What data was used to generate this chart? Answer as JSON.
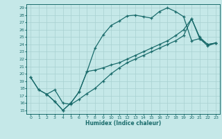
{
  "xlabel": "Humidex (Indice chaleur)",
  "bg_color": "#c5e8e8",
  "line_color": "#1a6b6b",
  "grid_color": "#a8d0d0",
  "xlim": [
    -0.5,
    23.5
  ],
  "ylim": [
    14.5,
    29.5
  ],
  "xticks": [
    0,
    1,
    2,
    3,
    4,
    5,
    6,
    7,
    8,
    9,
    10,
    11,
    12,
    13,
    14,
    15,
    16,
    17,
    18,
    19,
    20,
    21,
    22,
    23
  ],
  "yticks": [
    15,
    16,
    17,
    18,
    19,
    20,
    21,
    22,
    23,
    24,
    25,
    26,
    27,
    28,
    29
  ],
  "curve1_x": [
    0,
    1,
    2,
    3,
    4,
    5,
    6,
    7,
    8,
    9,
    10,
    11,
    12,
    13,
    14,
    15,
    16,
    17,
    18,
    19,
    20,
    21,
    22,
    23
  ],
  "curve1_y": [
    19.5,
    17.8,
    17.2,
    16.2,
    15.0,
    16.0,
    17.5,
    20.3,
    23.5,
    25.3,
    26.6,
    27.2,
    27.9,
    28.0,
    27.8,
    27.6,
    28.5,
    29.0,
    28.5,
    27.8,
    24.5,
    24.8,
    23.8,
    24.2
  ],
  "curve2_x": [
    0,
    1,
    2,
    3,
    4,
    5,
    6,
    7,
    8,
    9,
    10,
    11,
    12,
    13,
    14,
    15,
    16,
    17,
    18,
    19,
    20,
    21,
    22,
    23
  ],
  "curve2_y": [
    19.5,
    17.8,
    17.2,
    16.2,
    15.0,
    16.0,
    17.5,
    20.3,
    20.5,
    20.8,
    21.2,
    21.5,
    22.0,
    22.5,
    23.0,
    23.5,
    24.0,
    24.5,
    25.2,
    26.0,
    27.5,
    25.0,
    24.0,
    24.2
  ],
  "curve3_x": [
    2,
    3,
    4,
    5,
    6,
    7,
    8,
    9,
    10,
    11,
    12,
    13,
    14,
    15,
    16,
    17,
    18,
    19,
    20,
    21,
    22,
    23
  ],
  "curve3_y": [
    17.2,
    17.8,
    16.0,
    15.8,
    16.5,
    17.3,
    18.0,
    19.0,
    20.0,
    20.8,
    21.5,
    22.0,
    22.5,
    23.0,
    23.5,
    24.0,
    24.5,
    25.2,
    27.5,
    24.8,
    24.0,
    24.2
  ]
}
